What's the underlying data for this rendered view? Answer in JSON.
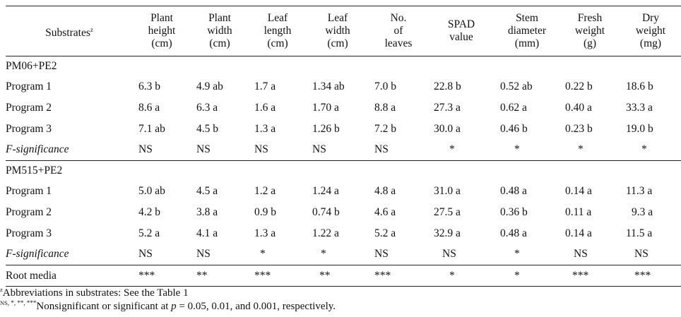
{
  "header": {
    "substrates": "Substrates",
    "substrates_sup": "z",
    "columns": [
      [
        "Plant",
        "height",
        "(cm)"
      ],
      [
        "Plant",
        "width",
        "(cm)"
      ],
      [
        "Leaf",
        "length",
        "(cm)"
      ],
      [
        "Leaf",
        "width",
        "(cm)"
      ],
      [
        "No.",
        "of",
        "leaves"
      ],
      [
        "SPAD",
        "value"
      ],
      [
        "Stem",
        "diameter",
        "(mm)"
      ],
      [
        "Fresh",
        "weight",
        "(g)"
      ],
      [
        "Dry",
        "weight",
        "(mg)"
      ]
    ]
  },
  "sections": [
    {
      "name": "PM06+PE2",
      "rows": [
        {
          "label": "Program 1",
          "values": [
            "6.3 b",
            "4.9 ab",
            "1.7 a",
            "1.34 ab",
            "7.0 b",
            "22.8 b",
            "0.52 ab",
            "0.22 b",
            "18.6 b"
          ]
        },
        {
          "label": "Program 2",
          "values": [
            "8.6 a",
            "6.3 a",
            "1.6 a",
            "1.70 a",
            "8.8 a",
            "27.3 a",
            "0.62 a",
            "0.40 a",
            "33.3 a"
          ]
        },
        {
          "label": "Program 3",
          "values": [
            "7.1 ab",
            "4.5 b",
            "1.3 a",
            "1.26 b",
            "7.2 b",
            "30.0 a",
            "0.46 b",
            "0.23 b",
            "19.0 b"
          ]
        }
      ],
      "fsig": {
        "label": "F-significance",
        "values": [
          "NS",
          "NS",
          "NS",
          "NS",
          "NS",
          "*",
          "*",
          "*",
          "*"
        ]
      }
    },
    {
      "name": "PM515+PE2",
      "rows": [
        {
          "label": "Program 1",
          "values": [
            "5.0 ab",
            "4.5 a",
            "1.2 a",
            "1.24 a",
            "4.8 a",
            "31.0 a",
            "0.48 a",
            "0.14 a",
            "11.3 a"
          ]
        },
        {
          "label": "Program 2",
          "values": [
            "4.2 b",
            "3.8 a",
            "0.9 b",
            "0.74 b",
            "4.6 a",
            "27.5 a",
            "0.36 b",
            "0.11 a",
            "9.3 a"
          ]
        },
        {
          "label": "Program 3",
          "values": [
            "5.2 a",
            "4.1 a",
            "1.3 a",
            "1.22 a",
            "5.2 a",
            "32.9 a",
            "0.48 a",
            "0.14 a",
            "11.5 a"
          ]
        }
      ],
      "fsig": {
        "label": "F-significance",
        "values": [
          "NS",
          "NS",
          "*",
          "*",
          "NS",
          "NS",
          "*",
          "NS",
          "NS"
        ]
      }
    }
  ],
  "root_media": {
    "label": "Root media",
    "values": [
      "***",
      "**",
      "***",
      "**",
      "***",
      "*",
      "*",
      "***",
      "***"
    ]
  },
  "footnotes": {
    "note1_sup": "z",
    "note1": "Abbreviations in substrates: See the Table 1",
    "note2_sup": "NS",
    "note2_marks": ", *, **, ***",
    "note2": "Nonsignificant or significant at ",
    "note2_p": "p",
    "note2_end": " = 0.05, 0.01, and 0.001, respectively."
  }
}
